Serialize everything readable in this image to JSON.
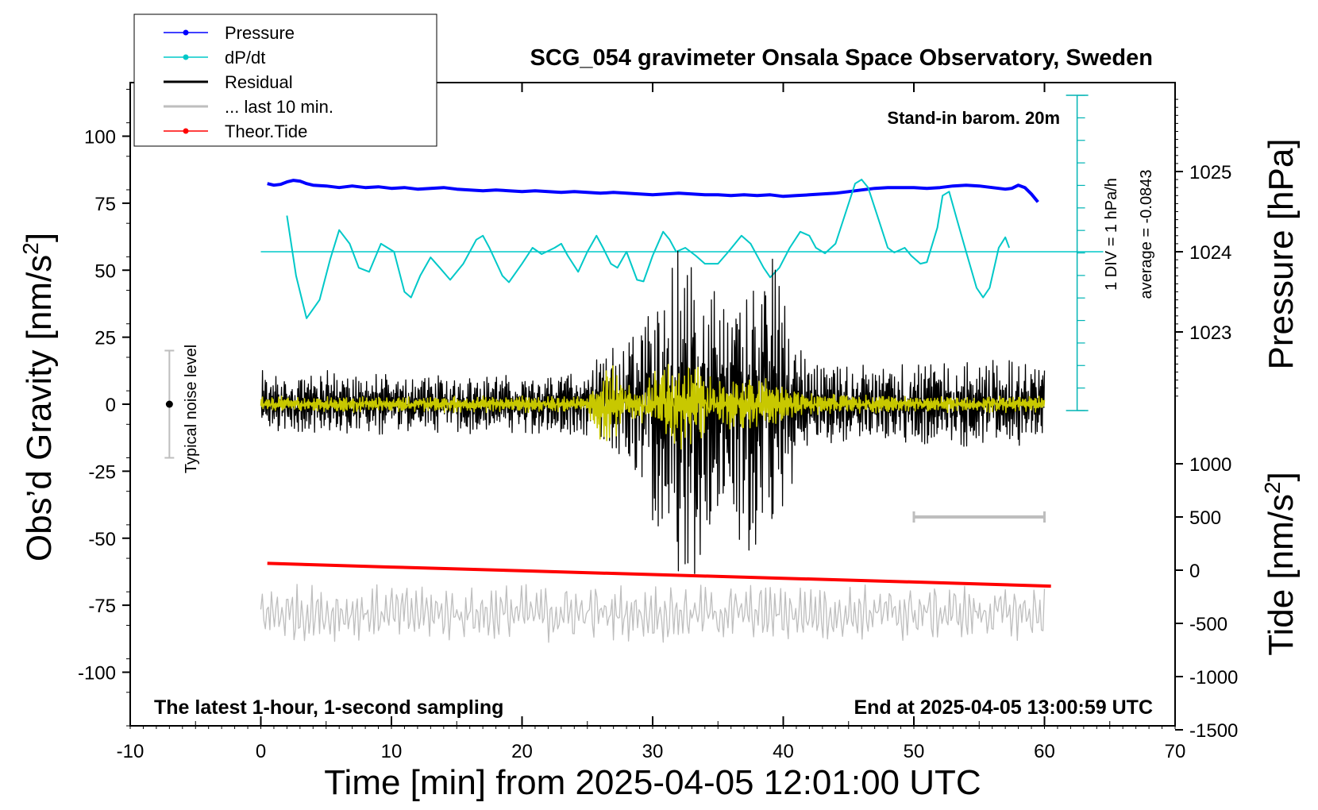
{
  "chart_data": {
    "type": "line",
    "title": "SCG_054 gravimeter Onsala Space Observatory, Sweden",
    "xlabel": "Time [min] from 2025-04-05 12:01:00 UTC",
    "ylabel": "Obs'd Gravity [nm/s²]",
    "ylabel_main": "Obs’d Gravity [nm/s",
    "ylabel_sup": "2",
    "ylabel_close": "]",
    "y2label": "Pressure [hPa]",
    "y3label": "Tide [nm/s²]",
    "y3label_main": "Tide [nm/s",
    "y3label_sup": "2",
    "y3label_close": "]",
    "xlim": [
      -10,
      70
    ],
    "ylim": [
      -120,
      120
    ],
    "x_ticks": [
      "-10",
      "0",
      "10",
      "20",
      "30",
      "40",
      "50",
      "60",
      "70"
    ],
    "y_ticks": [
      "100",
      "75",
      "50",
      "25",
      "0",
      "-25",
      "-50",
      "-75",
      "-100"
    ],
    "pressure_ticks": [
      "1025",
      "1024",
      "1023"
    ],
    "tide_ticks": [
      "1000",
      "500",
      "0",
      "-500",
      "-1000",
      "-1500"
    ],
    "annotations": {
      "barometer": "Stand-in barom. 20m",
      "bottom_left": "The latest 1-hour, 1-second sampling",
      "bottom_right": "End at 2025-04-05 13:00:59 UTC",
      "noise": "Typical noise level",
      "scale_div": "1 DIV = 1 hPa/h",
      "scale_avg": "average = -0.0843"
    },
    "legend": [
      {
        "label": "Pressure",
        "color": "#0000ff",
        "marker": true
      },
      {
        "label": "dP/dt",
        "color": "#00c8c8",
        "marker": true
      },
      {
        "label": "Residual",
        "color": "#000000",
        "marker": false
      },
      {
        "label": "... last 10 min.",
        "color": "#bebebe",
        "marker": false
      },
      {
        "label": "Theor.Tide",
        "color": "#ff0000",
        "marker": true
      }
    ],
    "noise_level": {
      "x": -7,
      "center": 0,
      "half_range": 20
    },
    "last10_bar": {
      "x_start": 50,
      "x_end": 60,
      "tide": 500
    },
    "dpdt_baseline_pressure": 1024,
    "series": [
      {
        "name": "Pressure",
        "axis": "pressure",
        "color": "#0000ff",
        "points": [
          [
            0.5,
            1024.85
          ],
          [
            1,
            1024.83
          ],
          [
            1.5,
            1024.84
          ],
          [
            2,
            1024.87
          ],
          [
            2.5,
            1024.89
          ],
          [
            3,
            1024.88
          ],
          [
            3.5,
            1024.85
          ],
          [
            4,
            1024.83
          ],
          [
            5,
            1024.82
          ],
          [
            6,
            1024.8
          ],
          [
            7,
            1024.82
          ],
          [
            8,
            1024.8
          ],
          [
            9,
            1024.81
          ],
          [
            10,
            1024.79
          ],
          [
            11,
            1024.8
          ],
          [
            12,
            1024.78
          ],
          [
            13,
            1024.79
          ],
          [
            14,
            1024.8
          ],
          [
            15,
            1024.78
          ],
          [
            16,
            1024.77
          ],
          [
            17,
            1024.76
          ],
          [
            18,
            1024.77
          ],
          [
            19,
            1024.76
          ],
          [
            20,
            1024.75
          ],
          [
            21,
            1024.76
          ],
          [
            22,
            1024.75
          ],
          [
            23,
            1024.74
          ],
          [
            24,
            1024.75
          ],
          [
            25,
            1024.74
          ],
          [
            26,
            1024.73
          ],
          [
            27,
            1024.74
          ],
          [
            28,
            1024.73
          ],
          [
            29,
            1024.72
          ],
          [
            30,
            1024.71
          ],
          [
            31,
            1024.72
          ],
          [
            32,
            1024.73
          ],
          [
            33,
            1024.72
          ],
          [
            34,
            1024.71
          ],
          [
            35,
            1024.71
          ],
          [
            36,
            1024.7
          ],
          [
            37,
            1024.71
          ],
          [
            38,
            1024.7
          ],
          [
            39,
            1024.71
          ],
          [
            40,
            1024.69
          ],
          [
            41,
            1024.7
          ],
          [
            42,
            1024.71
          ],
          [
            43,
            1024.72
          ],
          [
            44,
            1024.73
          ],
          [
            45,
            1024.75
          ],
          [
            46,
            1024.77
          ],
          [
            47,
            1024.79
          ],
          [
            48,
            1024.8
          ],
          [
            49,
            1024.8
          ],
          [
            50,
            1024.8
          ],
          [
            51,
            1024.79
          ],
          [
            52,
            1024.8
          ],
          [
            53,
            1024.82
          ],
          [
            54,
            1024.83
          ],
          [
            55,
            1024.82
          ],
          [
            56,
            1024.8
          ],
          [
            57,
            1024.78
          ],
          [
            57.5,
            1024.79
          ],
          [
            58,
            1024.83
          ],
          [
            58.5,
            1024.8
          ],
          [
            59,
            1024.72
          ],
          [
            59.5,
            1024.62
          ]
        ]
      },
      {
        "name": "dP/dt",
        "axis": "pressure",
        "color": "#00c8c8",
        "points": [
          [
            2,
            1024.45
          ],
          [
            2.7,
            1023.7
          ],
          [
            3.5,
            1023.17
          ],
          [
            4.5,
            1023.4
          ],
          [
            5.3,
            1023.9
          ],
          [
            6,
            1024.27
          ],
          [
            6.8,
            1024.1
          ],
          [
            7.5,
            1023.8
          ],
          [
            8.3,
            1023.75
          ],
          [
            9.2,
            1024.1
          ],
          [
            10.2,
            1024.0
          ],
          [
            11,
            1023.5
          ],
          [
            11.5,
            1023.43
          ],
          [
            12.2,
            1023.7
          ],
          [
            13,
            1023.93
          ],
          [
            13.7,
            1023.8
          ],
          [
            14.5,
            1023.65
          ],
          [
            15.5,
            1023.85
          ],
          [
            16.5,
            1024.15
          ],
          [
            17,
            1024.2
          ],
          [
            17.5,
            1024.05
          ],
          [
            18.5,
            1023.7
          ],
          [
            19,
            1023.62
          ],
          [
            20,
            1023.85
          ],
          [
            20.8,
            1024.05
          ],
          [
            21.5,
            1023.97
          ],
          [
            22.5,
            1024.05
          ],
          [
            23,
            1024.1
          ],
          [
            23.5,
            1023.95
          ],
          [
            24.3,
            1023.75
          ],
          [
            25,
            1024.0
          ],
          [
            25.7,
            1024.2
          ],
          [
            26.2,
            1024.05
          ],
          [
            26.8,
            1023.85
          ],
          [
            27.3,
            1023.8
          ],
          [
            28,
            1024.0
          ],
          [
            28.8,
            1023.65
          ],
          [
            29.3,
            1023.63
          ],
          [
            30,
            1023.95
          ],
          [
            30.8,
            1024.25
          ],
          [
            31.3,
            1024.15
          ],
          [
            31.8,
            1024.0
          ],
          [
            32.5,
            1024.05
          ],
          [
            33.3,
            1023.95
          ],
          [
            34,
            1023.85
          ],
          [
            35,
            1023.85
          ],
          [
            35.8,
            1024.0
          ],
          [
            36.8,
            1024.2
          ],
          [
            37.5,
            1024.1
          ],
          [
            38.5,
            1023.8
          ],
          [
            39,
            1023.68
          ],
          [
            39.7,
            1023.8
          ],
          [
            40.5,
            1024.05
          ],
          [
            41.3,
            1024.25
          ],
          [
            42,
            1024.2
          ],
          [
            42.5,
            1024.05
          ],
          [
            43.2,
            1023.98
          ],
          [
            44,
            1024.1
          ],
          [
            44.8,
            1024.5
          ],
          [
            45.5,
            1024.85
          ],
          [
            46,
            1024.9
          ],
          [
            46.5,
            1024.8
          ],
          [
            47.3,
            1024.4
          ],
          [
            48,
            1024.05
          ],
          [
            48.5,
            1023.99
          ],
          [
            49.3,
            1024.05
          ],
          [
            49.8,
            1023.95
          ],
          [
            50.5,
            1023.85
          ],
          [
            51,
            1023.87
          ],
          [
            51.8,
            1024.3
          ],
          [
            52.2,
            1024.7
          ],
          [
            52.7,
            1024.75
          ],
          [
            53.3,
            1024.4
          ],
          [
            54,
            1024.0
          ],
          [
            54.8,
            1023.55
          ],
          [
            55.3,
            1023.43
          ],
          [
            55.8,
            1023.55
          ],
          [
            56.5,
            1024.05
          ],
          [
            57,
            1024.18
          ],
          [
            57.3,
            1024.05
          ]
        ]
      },
      {
        "name": "Theor.Tide",
        "axis": "tide",
        "color": "#ff0000",
        "points": [
          [
            0.5,
            64
          ],
          [
            10,
            29
          ],
          [
            20,
            -6
          ],
          [
            30,
            -41
          ],
          [
            40,
            -76
          ],
          [
            50,
            -111
          ],
          [
            60.5,
            -150
          ]
        ]
      },
      {
        "name": "Residual",
        "axis": "gravity",
        "color": "#000000",
        "x_range": [
          0,
          60
        ],
        "envelope": [
          [
            0,
            12
          ],
          [
            5,
            12
          ],
          [
            10,
            11
          ],
          [
            15,
            11
          ],
          [
            20,
            11
          ],
          [
            25,
            12
          ],
          [
            26,
            20
          ],
          [
            27,
            25
          ],
          [
            28,
            22
          ],
          [
            29,
            30
          ],
          [
            30,
            45
          ],
          [
            31,
            55
          ],
          [
            32,
            62
          ],
          [
            33,
            65
          ],
          [
            34,
            60
          ],
          [
            35,
            45
          ],
          [
            36,
            42
          ],
          [
            37,
            55
          ],
          [
            38,
            62
          ],
          [
            39,
            58
          ],
          [
            40,
            40
          ],
          [
            41,
            25
          ],
          [
            42,
            16
          ],
          [
            45,
            14
          ],
          [
            50,
            15
          ],
          [
            55,
            16
          ],
          [
            60,
            16
          ]
        ]
      },
      {
        "name": "Residual (filtered)",
        "axis": "gravity",
        "color": "#c8c800",
        "x_range": [
          0,
          60
        ],
        "envelope": [
          [
            0,
            3
          ],
          [
            10,
            3
          ],
          [
            20,
            3
          ],
          [
            25,
            3
          ],
          [
            26,
            14
          ],
          [
            27,
            14
          ],
          [
            28,
            7
          ],
          [
            29,
            6
          ],
          [
            30,
            12
          ],
          [
            31,
            14
          ],
          [
            32,
            16
          ],
          [
            33,
            16
          ],
          [
            34,
            14
          ],
          [
            35,
            9
          ],
          [
            36,
            9
          ],
          [
            37,
            10
          ],
          [
            38,
            10
          ],
          [
            39,
            9
          ],
          [
            40,
            6
          ],
          [
            42,
            4
          ],
          [
            50,
            3
          ],
          [
            60,
            3
          ]
        ]
      },
      {
        "name": "... last 10 min.",
        "axis": "gravity",
        "color": "#bebebe",
        "x_range": [
          0,
          60
        ],
        "offset": -78,
        "amplitude": 10
      }
    ]
  }
}
